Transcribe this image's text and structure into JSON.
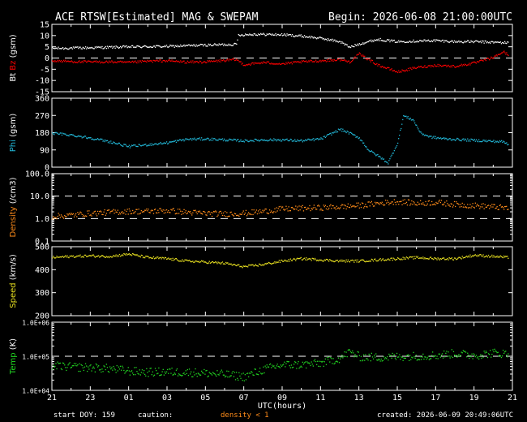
{
  "header": {
    "title": "ACE RTSW[Estimated] MAG & SWEPAM",
    "begin": "Begin: 2026-06-08 21:00:00UTC"
  },
  "footer": {
    "start_doy": "start DOY: 159",
    "caution_label": "caution:",
    "density_note": "density < 1",
    "created": "created: 2026-06-09 20:49:06UTC"
  },
  "colors": {
    "bt": "#ffffff",
    "bz": "#ff0000",
    "phi": "#22b8d8",
    "density": "#ff8c1a",
    "speed": "#e8e020",
    "temp": "#22d822",
    "axes": "#ffffff",
    "reference_line": "#ffffff"
  },
  "chart_data": {
    "type": "scatter",
    "x_axis": {
      "label": "UTC(hours)",
      "ticks": [
        "21",
        "23",
        "01",
        "03",
        "05",
        "07",
        "09",
        "11",
        "13",
        "15",
        "17",
        "19",
        "21"
      ],
      "range_hours": [
        0,
        24
      ]
    },
    "panels": [
      {
        "id": "mag",
        "ylabel_parts": [
          {
            "text": "Bt",
            "color": "#ffffff"
          },
          {
            "text": " Bz",
            "color": "#ff0000"
          },
          {
            "text": " (gsm)",
            "color": "#ffffff"
          }
        ],
        "ylim": [
          -15,
          15
        ],
        "yticks": [
          "15",
          "10",
          "5",
          "0",
          "-5",
          "-10",
          "-15"
        ],
        "ytick_values": [
          15,
          10,
          5,
          0,
          -5,
          -10,
          -15
        ],
        "scale": "linear",
        "reference_lines": [
          0
        ],
        "series": [
          {
            "label": "Bt",
            "color": "#ffffff",
            "points": [
              [
                0,
                4.5
              ],
              [
                2,
                4.8
              ],
              [
                4,
                5.2
              ],
              [
                6,
                5.4
              ],
              [
                8,
                6.0
              ],
              [
                9.6,
                6.3
              ],
              [
                9.7,
                10.5
              ],
              [
                10.5,
                10.8
              ],
              [
                12,
                10.6
              ],
              [
                13,
                10.0
              ],
              [
                14,
                9.0
              ],
              [
                15,
                7.5
              ],
              [
                15.5,
                5.0
              ],
              [
                16,
                6.5
              ],
              [
                16.7,
                8.0
              ],
              [
                17,
                8.5
              ],
              [
                18,
                7.5
              ],
              [
                19,
                7.8
              ],
              [
                20,
                8.0
              ],
              [
                21,
                7.5
              ],
              [
                22,
                7.5
              ],
              [
                23,
                7.2
              ],
              [
                23.8,
                7.0
              ]
            ]
          },
          {
            "label": "Bz",
            "color": "#ff0000",
            "points": [
              [
                0,
                -1.0
              ],
              [
                1.5,
                -1.5
              ],
              [
                3,
                -1.5
              ],
              [
                4,
                -1.8
              ],
              [
                5,
                -1.2
              ],
              [
                6,
                -1.0
              ],
              [
                7,
                -1.6
              ],
              [
                8,
                -1.5
              ],
              [
                9.6,
                -0.5
              ],
              [
                10,
                -2.8
              ],
              [
                11,
                -1.8
              ],
              [
                12,
                -2.4
              ],
              [
                13,
                -1.5
              ],
              [
                14,
                -1.0
              ],
              [
                15,
                -0.5
              ],
              [
                15.5,
                -1.5
              ],
              [
                16,
                2.0
              ],
              [
                16.5,
                -0.5
              ],
              [
                17,
                -3.0
              ],
              [
                17.5,
                -4.5
              ],
              [
                18,
                -6.0
              ],
              [
                19,
                -4.0
              ],
              [
                20,
                -3.0
              ],
              [
                21,
                -3.5
              ],
              [
                22,
                -2.0
              ],
              [
                23,
                0.5
              ],
              [
                23.5,
                3.0
              ],
              [
                23.8,
                1.5
              ]
            ]
          }
        ]
      },
      {
        "id": "phi",
        "ylabel_parts": [
          {
            "text": "Phi",
            "color": "#22b8d8"
          },
          {
            "text": " (gsm)",
            "color": "#ffffff"
          }
        ],
        "ylim": [
          0,
          360
        ],
        "yticks": [
          "360",
          "270",
          "180",
          "90",
          "0"
        ],
        "ytick_values": [
          360,
          270,
          180,
          90,
          0
        ],
        "scale": "linear",
        "reference_lines": [],
        "series": [
          {
            "label": "Phi",
            "color": "#22b8d8",
            "points": [
              [
                0,
                180
              ],
              [
                1,
                170
              ],
              [
                2,
                155
              ],
              [
                3,
                135
              ],
              [
                4,
                110
              ],
              [
                5,
                120
              ],
              [
                6,
                130
              ],
              [
                7,
                148
              ],
              [
                8,
                150
              ],
              [
                9,
                145
              ],
              [
                10,
                140
              ],
              [
                11,
                145
              ],
              [
                12,
                145
              ],
              [
                13,
                140
              ],
              [
                14,
                150
              ],
              [
                15,
                200
              ],
              [
                15.5,
                180
              ],
              [
                16,
                155
              ],
              [
                16.5,
                90
              ],
              [
                17,
                60
              ],
              [
                17.5,
                25
              ],
              [
                18,
                130
              ],
              [
                18.3,
                270
              ],
              [
                18.8,
                250
              ],
              [
                19.2,
                180
              ],
              [
                19.7,
                160
              ],
              [
                20.5,
                150
              ],
              [
                21.5,
                145
              ],
              [
                22.5,
                140
              ],
              [
                23.5,
                135
              ],
              [
                23.8,
                120
              ]
            ]
          }
        ]
      },
      {
        "id": "density",
        "ylabel_parts": [
          {
            "text": "Density",
            "color": "#ff8c1a"
          },
          {
            "text": " (/cm3)",
            "color": "#ffffff"
          }
        ],
        "ylim": [
          0.1,
          100
        ],
        "yticks": [
          "100.0",
          "10.0",
          "1.0",
          "0.1"
        ],
        "ytick_values": [
          100,
          10,
          1,
          0.1
        ],
        "scale": "log",
        "reference_lines": [
          10,
          1
        ],
        "series": [
          {
            "label": "Density",
            "color": "#ff8c1a",
            "points": [
              [
                0,
                1.3
              ],
              [
                1,
                1.5
              ],
              [
                2,
                1.8
              ],
              [
                3,
                2.0
              ],
              [
                4,
                2.2
              ],
              [
                5,
                2.2
              ],
              [
                6,
                2.4
              ],
              [
                7,
                2.0
              ],
              [
                8,
                1.8
              ],
              [
                9,
                1.7
              ],
              [
                10,
                1.8
              ],
              [
                11,
                2.2
              ],
              [
                12,
                2.8
              ],
              [
                13,
                3.0
              ],
              [
                14,
                3.2
              ],
              [
                15,
                3.5
              ],
              [
                16,
                4.0
              ],
              [
                17,
                5.0
              ],
              [
                18,
                6.0
              ],
              [
                19,
                5.0
              ],
              [
                20,
                5.5
              ],
              [
                21,
                4.5
              ],
              [
                22,
                4.0
              ],
              [
                23,
                3.5
              ],
              [
                23.8,
                3.0
              ]
            ]
          }
        ]
      },
      {
        "id": "speed",
        "ylabel_parts": [
          {
            "text": "Speed",
            "color": "#e8e020"
          },
          {
            "text": " (km/s)",
            "color": "#ffffff"
          }
        ],
        "ylim": [
          200,
          500
        ],
        "yticks": [
          "500",
          "400",
          "300",
          "200"
        ],
        "ytick_values": [
          500,
          400,
          300,
          200
        ],
        "scale": "linear",
        "reference_lines": [],
        "series": [
          {
            "label": "Speed",
            "color": "#e8e020",
            "points": [
              [
                0,
                455
              ],
              [
                1,
                460
              ],
              [
                2,
                462
              ],
              [
                3,
                460
              ],
              [
                4,
                470
              ],
              [
                5,
                455
              ],
              [
                6,
                450
              ],
              [
                7,
                440
              ],
              [
                8,
                435
              ],
              [
                9,
                430
              ],
              [
                10,
                415
              ],
              [
                11,
                425
              ],
              [
                12,
                440
              ],
              [
                13,
                450
              ],
              [
                14,
                445
              ],
              [
                15,
                440
              ],
              [
                16,
                440
              ],
              [
                17,
                445
              ],
              [
                18,
                450
              ],
              [
                19,
                455
              ],
              [
                20,
                450
              ],
              [
                21,
                450
              ],
              [
                22,
                465
              ],
              [
                23,
                460
              ],
              [
                23.8,
                455
              ]
            ]
          }
        ]
      },
      {
        "id": "temp",
        "ylabel_parts": [
          {
            "text": "Temp",
            "color": "#22d822"
          },
          {
            "text": " (K)",
            "color": "#ffffff"
          }
        ],
        "ylim": [
          10000,
          1000000
        ],
        "yticks": [
          "1.0E+06",
          "1.0E+05",
          "1.0E+04"
        ],
        "ytick_values": [
          1000000,
          100000,
          10000
        ],
        "scale": "log",
        "reference_lines": [
          100000
        ],
        "series": [
          {
            "label": "Temp",
            "color": "#22d822",
            "points": [
              [
                0,
                55000
              ],
              [
                1,
                50000
              ],
              [
                2,
                48000
              ],
              [
                3,
                45000
              ],
              [
                4,
                38000
              ],
              [
                5,
                35000
              ],
              [
                6,
                36000
              ],
              [
                7,
                35000
              ],
              [
                8,
                33000
              ],
              [
                9,
                30000
              ],
              [
                10,
                26000
              ],
              [
                11,
                42000
              ],
              [
                12,
                58000
              ],
              [
                13,
                58000
              ],
              [
                14,
                65000
              ],
              [
                15,
                90000
              ],
              [
                15.5,
                140000
              ],
              [
                16,
                100000
              ],
              [
                17,
                95000
              ],
              [
                18,
                100000
              ],
              [
                19,
                105000
              ],
              [
                20,
                110000
              ],
              [
                21,
                125000
              ],
              [
                22,
                110000
              ],
              [
                23,
                130000
              ],
              [
                23.8,
                120000
              ]
            ]
          }
        ]
      }
    ]
  }
}
